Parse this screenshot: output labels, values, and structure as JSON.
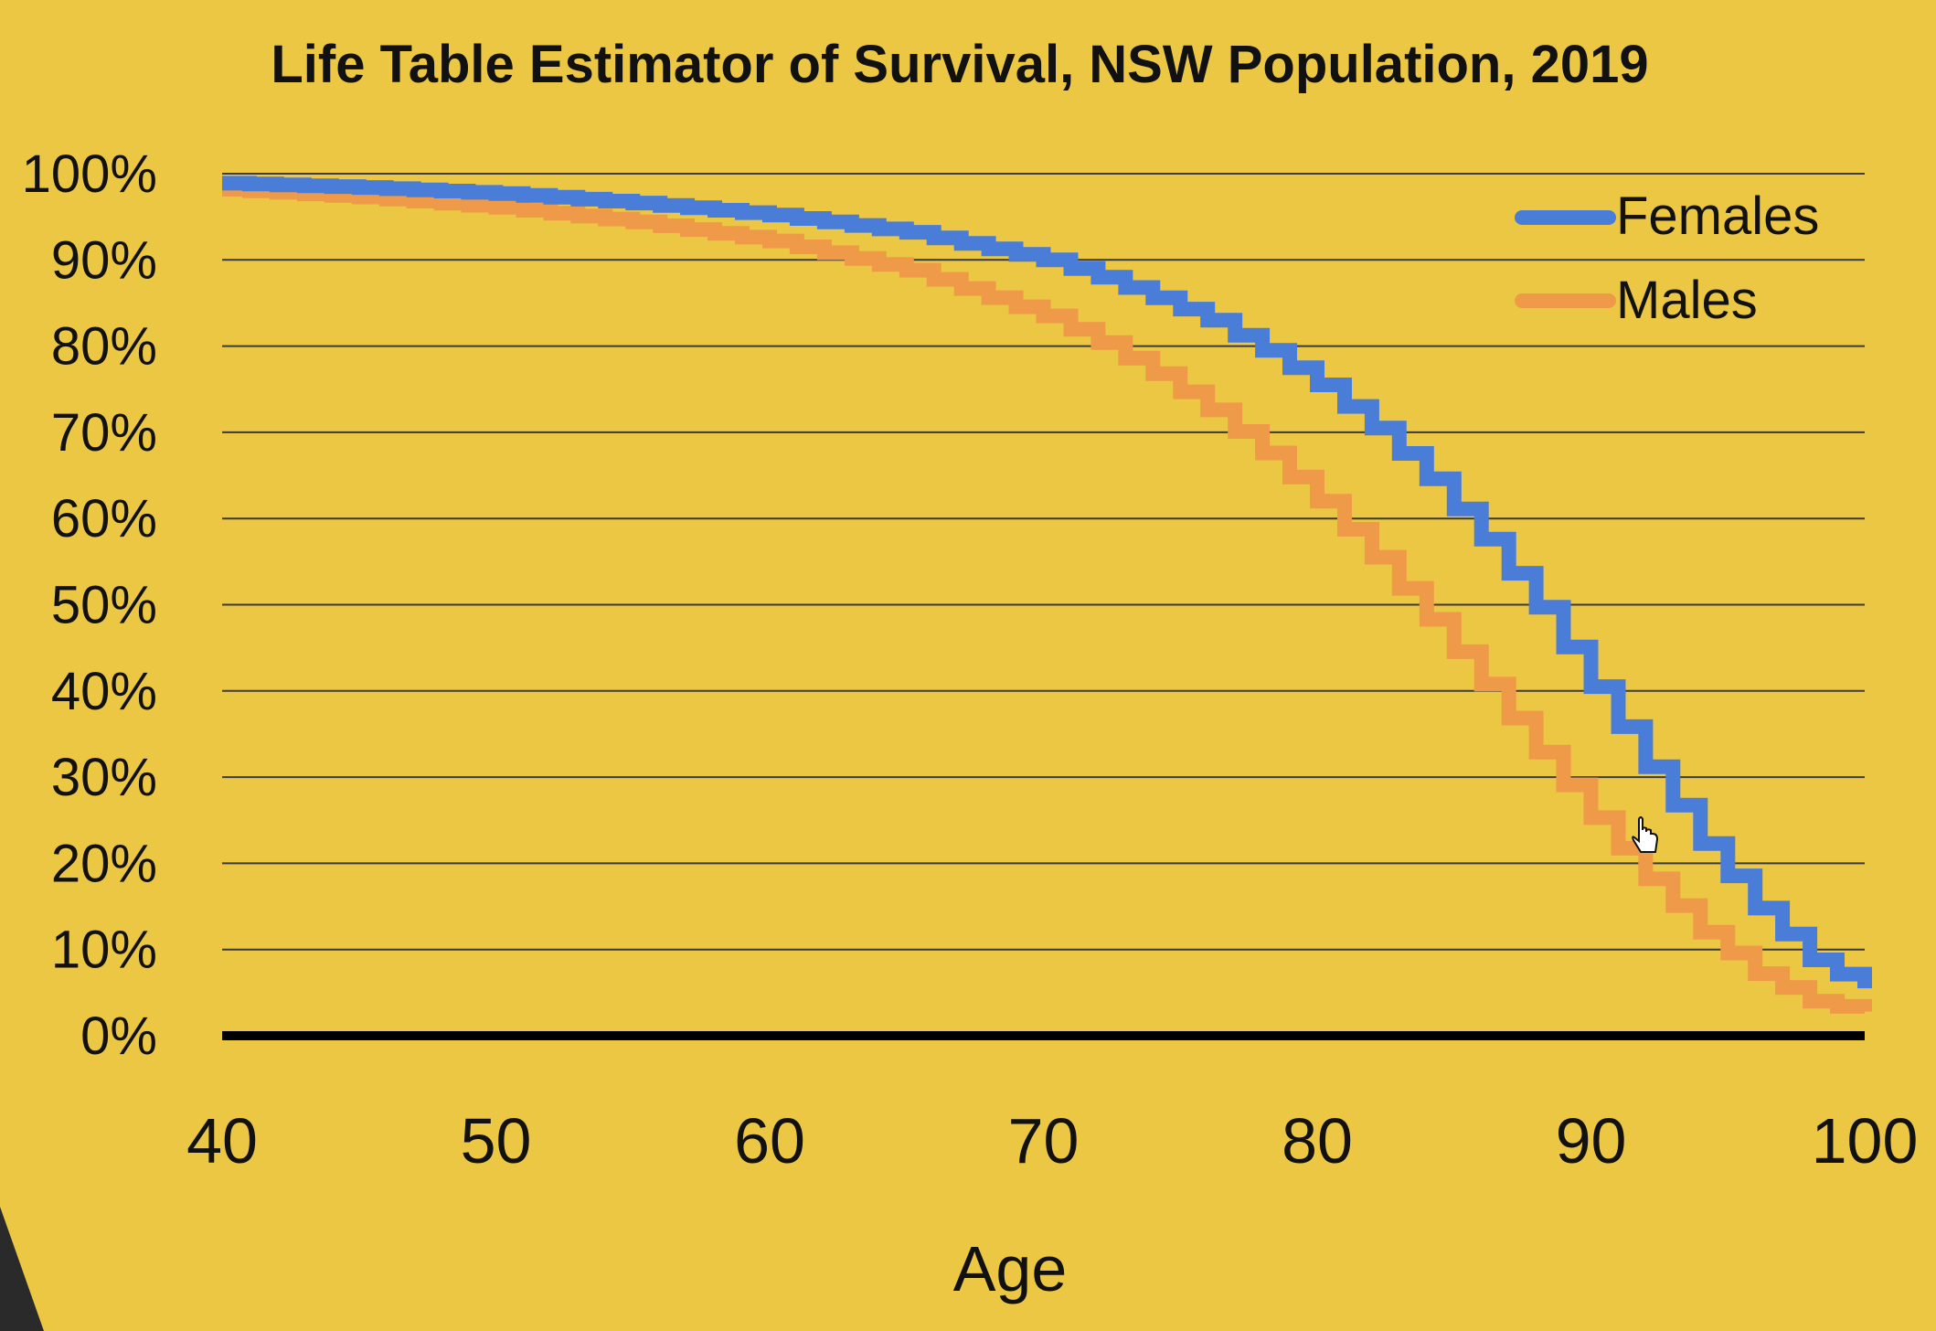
{
  "chart_data": {
    "type": "line",
    "step": true,
    "title": "Life Table Estimator of Survival, NSW Population, 2019",
    "xlabel": "Age",
    "ylabel": "",
    "xlim": [
      40,
      100
    ],
    "ylim": [
      0,
      100
    ],
    "x_ticks": [
      "40",
      "50",
      "60",
      "70",
      "80",
      "90",
      "100"
    ],
    "y_ticks": [
      "0%",
      "10%",
      "20%",
      "30%",
      "40%",
      "50%",
      "60%",
      "70%",
      "80%",
      "90%",
      "100%"
    ],
    "grid": true,
    "legend_position": "top-right",
    "x": [
      40,
      45,
      50,
      55,
      60,
      65,
      70,
      72,
      74,
      76,
      78,
      80,
      82,
      84,
      86,
      88,
      90,
      92,
      94,
      96,
      98,
      100
    ],
    "series": [
      {
        "name": "Females",
        "color": "#4a7dd8",
        "values": [
          98.9,
          98.4,
          97.7,
          96.6,
          95.2,
          93.2,
          90.0,
          88.0,
          85.6,
          83.0,
          79.5,
          75.5,
          70.5,
          64.6,
          57.6,
          49.7,
          40.5,
          31.2,
          22.3,
          14.8,
          8.8,
          5.5
        ]
      },
      {
        "name": "Males",
        "color": "#ef9a48",
        "values": [
          98.2,
          97.3,
          96.1,
          94.4,
          92.2,
          88.8,
          83.5,
          80.4,
          76.8,
          72.6,
          67.6,
          62.0,
          55.5,
          48.3,
          40.8,
          32.9,
          25.3,
          18.2,
          12.0,
          7.2,
          4.0,
          2.8
        ]
      }
    ]
  },
  "colors": {
    "background": "#ecc743",
    "gridline": "#3a3a3a",
    "axis": "#000000",
    "text": "#111111",
    "corner": "#2a2a2a"
  }
}
